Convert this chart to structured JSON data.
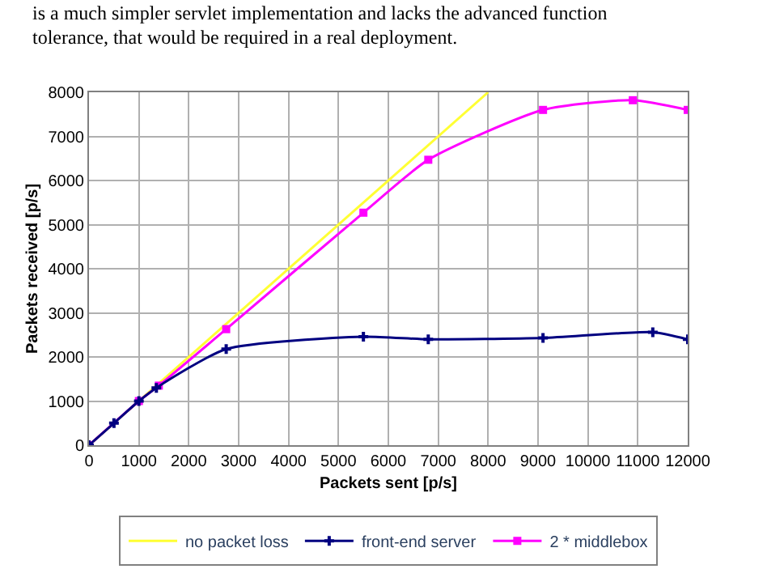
{
  "chart_data": {
    "type": "line",
    "xlabel": "Packets sent [p/s]",
    "ylabel": "Packets received [p/s]",
    "annotations": [
      "is a much simpler servlet implementation and lacks the advanced function",
      "tolerance, that would be required in a real deployment."
    ],
    "xlim": [
      0,
      12000
    ],
    "ylim": [
      0,
      8000
    ],
    "xticks": [
      0,
      1000,
      2000,
      3000,
      4000,
      5000,
      6000,
      7000,
      8000,
      9000,
      10000,
      11000,
      12000
    ],
    "yticks": [
      0,
      1000,
      2000,
      3000,
      4000,
      5000,
      6000,
      7000,
      8000
    ],
    "grid": true,
    "legend": "bottom",
    "line_style": "solid",
    "series": [
      {
        "name": "no packet loss",
        "color": "#ffff33",
        "marker": "none",
        "x": [
          0,
          8000
        ],
        "values": [
          0,
          8000
        ]
      },
      {
        "name": "front-end server",
        "color": "#000080",
        "marker": "cross",
        "x": [
          0,
          500,
          1000,
          1350,
          2750,
          5500,
          6800,
          9100,
          11300,
          12000
        ],
        "values": [
          0,
          500,
          1000,
          1300,
          2180,
          2460,
          2400,
          2430,
          2560,
          2400
        ]
      },
      {
        "name": "2 * middlebox",
        "color": "#ff00ff",
        "marker": "square",
        "x": [
          0,
          1000,
          1400,
          2750,
          5500,
          6800,
          9100,
          10900,
          12000
        ],
        "values": [
          0,
          1000,
          1350,
          2630,
          5270,
          6470,
          7600,
          7820,
          7600
        ]
      }
    ]
  }
}
